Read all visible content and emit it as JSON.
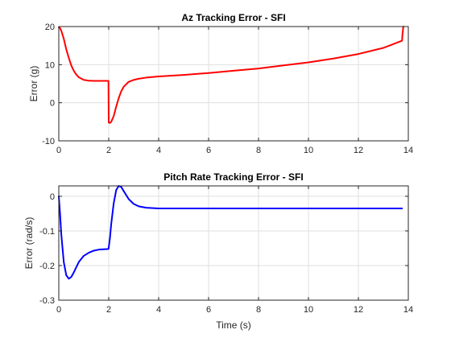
{
  "chart_data": [
    {
      "type": "line",
      "title": "Az Tracking Error - SFI",
      "xlabel": "",
      "ylabel": "Error (g)",
      "xlim": [
        0,
        14
      ],
      "ylim": [
        -10,
        20
      ],
      "xticks": [
        0,
        2,
        4,
        6,
        8,
        10,
        12,
        14
      ],
      "yticks": [
        -10,
        0,
        10,
        20
      ],
      "grid": true,
      "color": "#ff0000",
      "series": [
        {
          "x": [
            0,
            0.05,
            0.1,
            0.2,
            0.3,
            0.4,
            0.5,
            0.6,
            0.7,
            0.8,
            1.0,
            1.2,
            1.4,
            1.6,
            1.8,
            1.9,
            1.99,
            2.0,
            2.05,
            2.1,
            2.2,
            2.3,
            2.4,
            2.5,
            2.6,
            2.8,
            3.0,
            3.2,
            3.5,
            4.0,
            5.0,
            6.0,
            7.0,
            8.0,
            9.0,
            10.0,
            11.0,
            12.0,
            13.0,
            13.75,
            13.76,
            13.8
          ],
          "y": [
            19.8,
            19.6,
            18.9,
            16.8,
            14.0,
            11.8,
            9.8,
            8.4,
            7.4,
            6.7,
            6.0,
            5.8,
            5.75,
            5.75,
            5.75,
            5.75,
            5.75,
            -5.2,
            -5.3,
            -5.0,
            -3.5,
            -1.0,
            1.2,
            3.0,
            4.2,
            5.5,
            6.0,
            6.3,
            6.6,
            6.9,
            7.3,
            7.8,
            8.4,
            9.0,
            9.8,
            10.6,
            11.6,
            12.8,
            14.4,
            16.3,
            17.5,
            20.0
          ]
        }
      ]
    },
    {
      "type": "line",
      "title": "Pitch Rate Tracking Error - SFI",
      "xlabel": "Time (s)",
      "ylabel": "Error (rad/s)",
      "xlim": [
        0,
        14
      ],
      "ylim": [
        -0.3,
        0.03
      ],
      "xticks": [
        0,
        2,
        4,
        6,
        8,
        10,
        12,
        14
      ],
      "yticks": [
        -0.3,
        -0.2,
        -0.1,
        0
      ],
      "ytick_labels": [
        "-0.3",
        "-0.2",
        "-0.1",
        "0"
      ],
      "grid": true,
      "color": "#0000ff",
      "series": [
        {
          "x": [
            0,
            0.05,
            0.1,
            0.2,
            0.3,
            0.4,
            0.5,
            0.6,
            0.7,
            0.8,
            1.0,
            1.2,
            1.4,
            1.6,
            1.8,
            1.99,
            2.0,
            2.05,
            2.1,
            2.2,
            2.3,
            2.4,
            2.5,
            2.6,
            2.8,
            3.0,
            3.2,
            3.5,
            4.0,
            5.0,
            6.0,
            8.0,
            10.0,
            12.0,
            13.75
          ],
          "y": [
            0.0,
            -0.05,
            -0.11,
            -0.19,
            -0.228,
            -0.238,
            -0.233,
            -0.22,
            -0.205,
            -0.19,
            -0.172,
            -0.163,
            -0.157,
            -0.154,
            -0.153,
            -0.152,
            -0.148,
            -0.12,
            -0.08,
            -0.02,
            0.018,
            0.03,
            0.027,
            0.015,
            -0.008,
            -0.022,
            -0.029,
            -0.033,
            -0.035,
            -0.035,
            -0.035,
            -0.035,
            -0.035,
            -0.035,
            -0.035
          ]
        }
      ]
    }
  ]
}
